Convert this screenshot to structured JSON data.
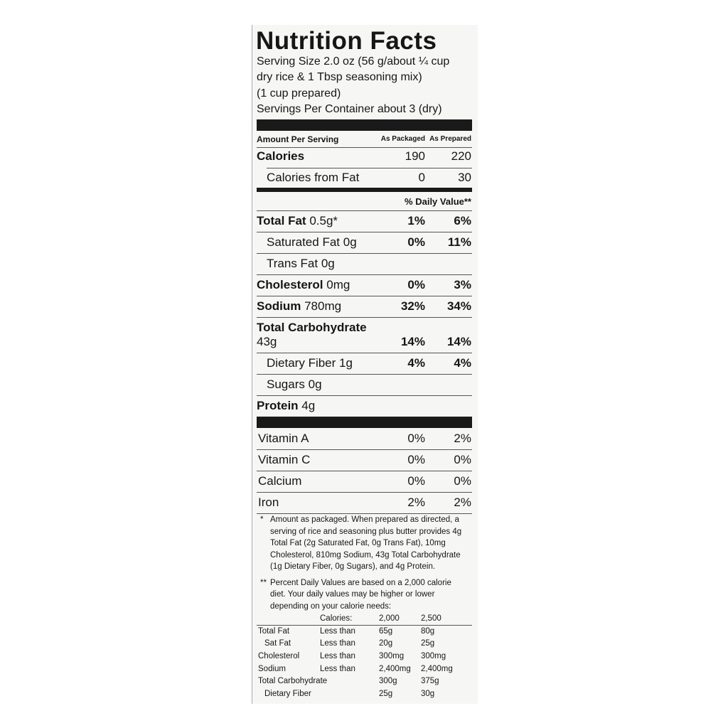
{
  "header": {
    "title": "Nutrition Facts",
    "serving": [
      "Serving Size 2.0 oz (56 g/about ¼ cup",
      "dry rice & 1 Tbsp seasoning mix)",
      "(1 cup prepared)",
      "Servings Per Container about 3 (dry)"
    ]
  },
  "columns": {
    "label": "Amount Per Serving",
    "packaged": "As Packaged",
    "prepared": "As Prepared"
  },
  "calories": {
    "name": "Calories",
    "packaged": "190",
    "prepared": "220",
    "sub": [
      {
        "name": "Calories from Fat",
        "packaged": "0",
        "prepared": "30"
      }
    ]
  },
  "daily_value_header": "% Daily Value**",
  "nutrients": [
    {
      "name": "Total Fat",
      "amount": "0.5g*",
      "packaged": "1%",
      "prepared": "6%",
      "sub": [
        {
          "name": "Saturated Fat",
          "amount": "0g",
          "packaged": "0%",
          "prepared": "11%"
        },
        {
          "name": "Trans Fat",
          "amount": "0g"
        }
      ]
    },
    {
      "name": "Cholesterol",
      "amount": "0mg",
      "packaged": "0%",
      "prepared": "3%"
    },
    {
      "name": "Sodium",
      "amount": "780mg",
      "packaged": "32%",
      "prepared": "34%"
    },
    {
      "name": "Total Carbohydrate",
      "amount": "43g",
      "packaged": "14%",
      "prepared": "14%",
      "sub": [
        {
          "name": "Dietary Fiber",
          "amount": "1g",
          "packaged": "4%",
          "prepared": "4%"
        },
        {
          "name": "Sugars",
          "amount": "0g"
        }
      ]
    },
    {
      "name": "Protein",
      "amount": "4g"
    }
  ],
  "vitamins": [
    {
      "name": "Vitamin A",
      "packaged": "0%",
      "prepared": "2%"
    },
    {
      "name": "Vitamin C",
      "packaged": "0%",
      "prepared": "0%"
    },
    {
      "name": "Calcium",
      "packaged": "0%",
      "prepared": "0%"
    },
    {
      "name": "Iron",
      "packaged": "2%",
      "prepared": "2%"
    }
  ],
  "footnotes": {
    "as_packaged": {
      "marker": "*",
      "lines": [
        "Amount as packaged. When prepared as directed, a",
        "serving of rice and seasoning plus butter provides 4g",
        "Total Fat (2g Saturated Fat, 0g Trans Fat), 10mg",
        "Cholesterol, 810mg Sodium, 43g Total Carbohydrate",
        "(1g Dietary Fiber, 0g Sugars), and 4g Protein."
      ]
    },
    "daily_values": {
      "marker": "**",
      "lines": [
        "Percent Daily Values are based on a 2,000 calorie",
        "diet. Your daily values may be higher or lower",
        "depending on your calorie needs:"
      ]
    }
  },
  "dv_table": {
    "header": {
      "label": "Calories:",
      "values": [
        "2,000",
        "2,500"
      ]
    },
    "rows": [
      {
        "name": "Total Fat",
        "qualifier": "Less than",
        "values": [
          "65g",
          "80g"
        ],
        "sub": [
          {
            "name": "Sat Fat",
            "qualifier": "Less than",
            "values": [
              "20g",
              "25g"
            ]
          }
        ]
      },
      {
        "name": "Cholesterol",
        "qualifier": "Less than",
        "values": [
          "300mg",
          "300mg"
        ]
      },
      {
        "name": "Sodium",
        "qualifier": "Less than",
        "values": [
          "2,400mg",
          "2,400mg"
        ]
      },
      {
        "name": "Total Carbohydrate",
        "values": [
          "300g",
          "375g"
        ],
        "sub": [
          {
            "name": "Dietary Fiber",
            "values": [
              "25g",
              "30g"
            ]
          }
        ]
      }
    ]
  }
}
